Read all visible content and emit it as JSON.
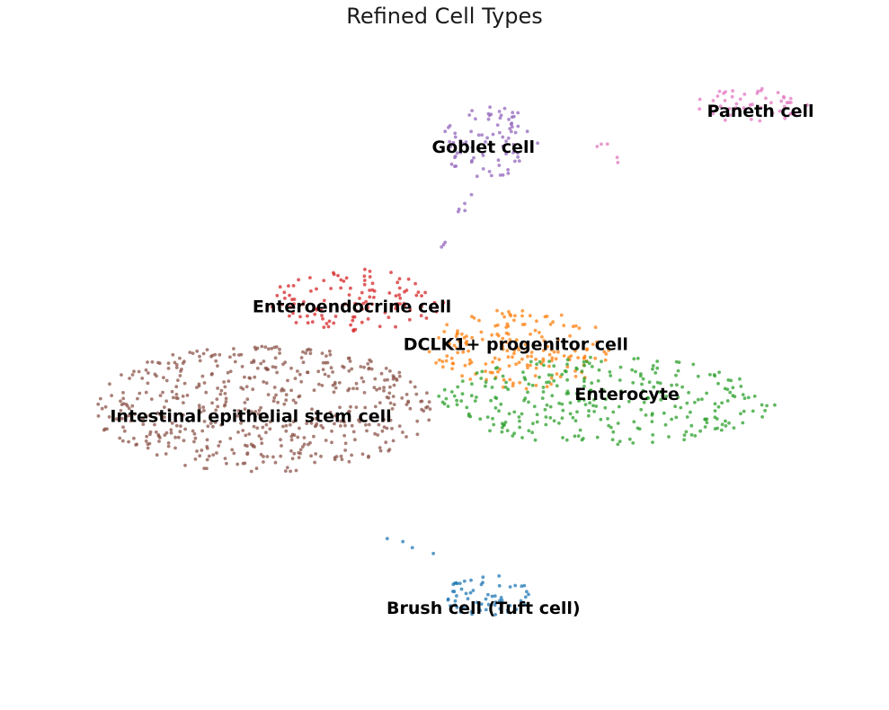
{
  "chart_data": {
    "type": "scatter",
    "title": "Refined Cell Types",
    "xlabel": "",
    "ylabel": "",
    "grid": false,
    "legend": "none (labels on data)",
    "xlim": [
      -1.5,
      18.5
    ],
    "ylim": [
      -1.5,
      14.5
    ],
    "series": [
      {
        "name": "Brush cell (Tuft cell)",
        "color": "#1f77b4",
        "label_at": [
          9.45,
          0.58
        ],
        "center": [
          9.6,
          0.9
        ],
        "spread": [
          1.1,
          0.55
        ],
        "count": 60
      },
      {
        "name": "DCLK1+ progenitor cell",
        "color": "#ff7f0e",
        "label_at": [
          10.25,
          7.2
        ],
        "center": [
          10.4,
          7.1
        ],
        "spread": [
          2.4,
          1.0
        ],
        "count": 180
      },
      {
        "name": "Enterocyte",
        "color": "#2ca02c",
        "label_at": [
          13.0,
          5.95
        ],
        "center": [
          12.5,
          5.8
        ],
        "spread": [
          4.2,
          1.1
        ],
        "count": 300
      },
      {
        "name": "Enteroendocrine cell",
        "color": "#d62728",
        "label_at": [
          6.2,
          8.15
        ],
        "center": [
          6.3,
          8.3
        ],
        "spread": [
          2.2,
          0.8
        ],
        "count": 120
      },
      {
        "name": "Goblet cell",
        "color": "#9467bd",
        "label_at": [
          9.45,
          12.15
        ],
        "center": [
          9.6,
          12.3
        ],
        "spread": [
          1.2,
          0.9
        ],
        "count": 80
      },
      {
        "name": "Intestinal epithelial stem cell",
        "color": "#8c564b",
        "label_at": [
          3.7,
          5.4
        ],
        "center": [
          4.0,
          5.6
        ],
        "spread": [
          4.2,
          1.6
        ],
        "count": 520
      },
      {
        "name": "Paneth cell",
        "color": "#e377c2",
        "label_at": [
          16.3,
          13.05
        ],
        "center": [
          16.1,
          13.2
        ],
        "spread": [
          1.4,
          0.45
        ],
        "count": 50
      }
    ],
    "bridges": [
      {
        "from": [
          8.3,
          9.5
        ],
        "to": [
          9.2,
          11.0
        ],
        "color": "#9467bd",
        "count": 8
      },
      {
        "from": [
          7.2,
          2.3
        ],
        "to": [
          8.4,
          2.0
        ],
        "color": "#1f77b4",
        "count": 4
      },
      {
        "from": [
          12.2,
          12.2
        ],
        "to": [
          13.0,
          11.8
        ],
        "color": "#e377c2",
        "count": 5
      }
    ]
  }
}
